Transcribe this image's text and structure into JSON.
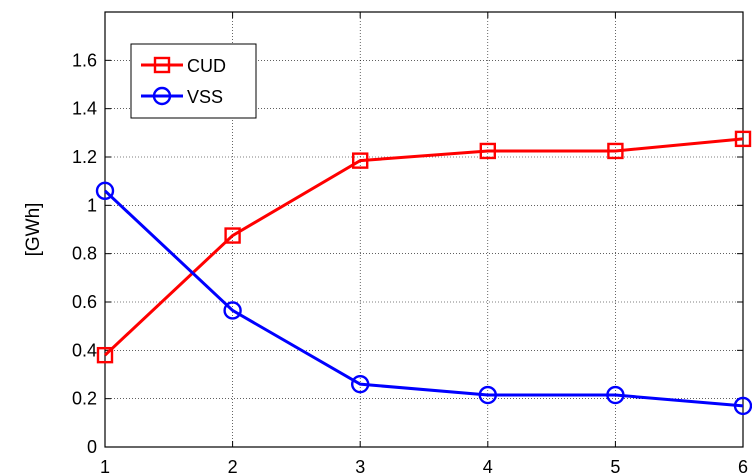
{
  "chart_data": {
    "type": "line",
    "x": [
      1,
      2,
      3,
      4,
      5,
      6
    ],
    "xlim": [
      1,
      6
    ],
    "ylim": [
      0,
      1.8
    ],
    "xticks": [
      1,
      2,
      3,
      4,
      5,
      6
    ],
    "yticks": [
      0,
      0.2,
      0.4,
      0.6,
      0.8,
      1,
      1.2,
      1.4,
      1.6
    ],
    "ytick_labels": [
      "0",
      "0.2",
      "0.4",
      "0.6",
      "0.8",
      "1",
      "1.2",
      "1.4",
      "1.6"
    ],
    "xtick_labels": [
      "1",
      "2",
      "3",
      "4",
      "5",
      "6"
    ],
    "ylabel": "[GWh]",
    "xlabel": "",
    "title": "",
    "grid": true,
    "legend_position": "top-left",
    "series": [
      {
        "name": "CUD",
        "color": "#ff0000",
        "marker": "square",
        "values": [
          0.38,
          0.875,
          1.185,
          1.225,
          1.225,
          1.275
        ]
      },
      {
        "name": "VSS",
        "color": "#0000ff",
        "marker": "circle",
        "values": [
          1.06,
          0.565,
          0.26,
          0.215,
          0.215,
          0.17
        ]
      }
    ]
  }
}
